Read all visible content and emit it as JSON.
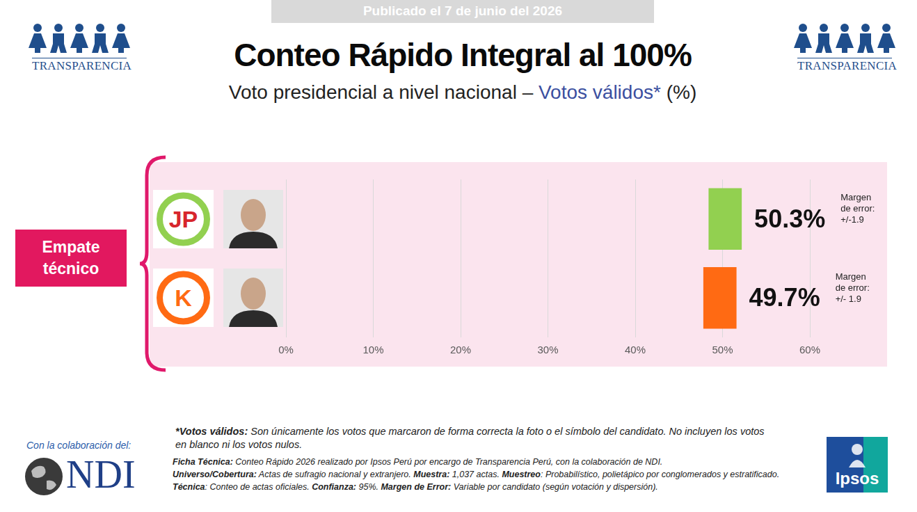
{
  "chart_data": {
    "type": "bar",
    "orientation": "horizontal",
    "banner": "Publicado el 7 de junio del 2026",
    "title": "Conteo Rápido Integral al 100%",
    "subtitle": [
      "Voto presidencial a nivel nacional – ",
      "Votos válidos*",
      " (%)"
    ],
    "annotation": "Empate técnico",
    "categories": [
      "JP",
      "K"
    ],
    "values": [
      50.3,
      49.7
    ],
    "value_labels": [
      "50.3%",
      "49.7%"
    ],
    "errors": [
      1.9,
      1.9
    ],
    "error_labels": [
      "Margen de error: +/-1.9",
      "Margen de error: +/- 1.9"
    ],
    "colors": [
      "#92d050",
      "#ff6a13"
    ],
    "xlim": [
      0,
      60
    ],
    "xticks": [
      {
        "value": 0,
        "label": "0%"
      },
      {
        "value": 10,
        "label": "10%"
      },
      {
        "value": 20,
        "label": "20%"
      },
      {
        "value": 30,
        "label": "30%"
      },
      {
        "value": 40,
        "label": "40%"
      },
      {
        "value": 50,
        "label": "50%"
      },
      {
        "value": 60,
        "label": "60%"
      }
    ],
    "grid": true,
    "data_labels": true,
    "tick_labels": "x",
    "footnote": {
      "label": "*Votos válidos:",
      "text": "Son únicamente los votos que marcaron de forma correcta la foto o el símbolo del candidato. No incluyen los votos en blanco ni los votos nulos."
    },
    "ficha": [
      {
        "label": "Ficha Técnica:",
        "text": "Conteo Rápido 2026 realizado por Ipsos Perú por encargo de Transparencia Perú, con la colaboración de NDI."
      },
      {
        "label": "Universo/Cobertura:",
        "text": "Actas de sufragio nacional y extranjero."
      },
      {
        "label": "Muestra:",
        "text": "1,037 actas."
      },
      {
        "label": "Muestreo",
        "text": ": Probabilístico, polietápico por conglomerados y estratificado."
      },
      {
        "label": "Técnica",
        "text": ": Conteo de actas oficiales."
      },
      {
        "label": "Confianza:",
        "text": "95%."
      },
      {
        "label": "Margen de Error:",
        "text": "Variable por candidato (según votación y dispersión)."
      }
    ],
    "logos": {
      "transparencia": "TRANSPARENCIA",
      "collab": "Con la colaboración del:",
      "ndi": "NDI",
      "ipsos": "Ipsos"
    }
  }
}
